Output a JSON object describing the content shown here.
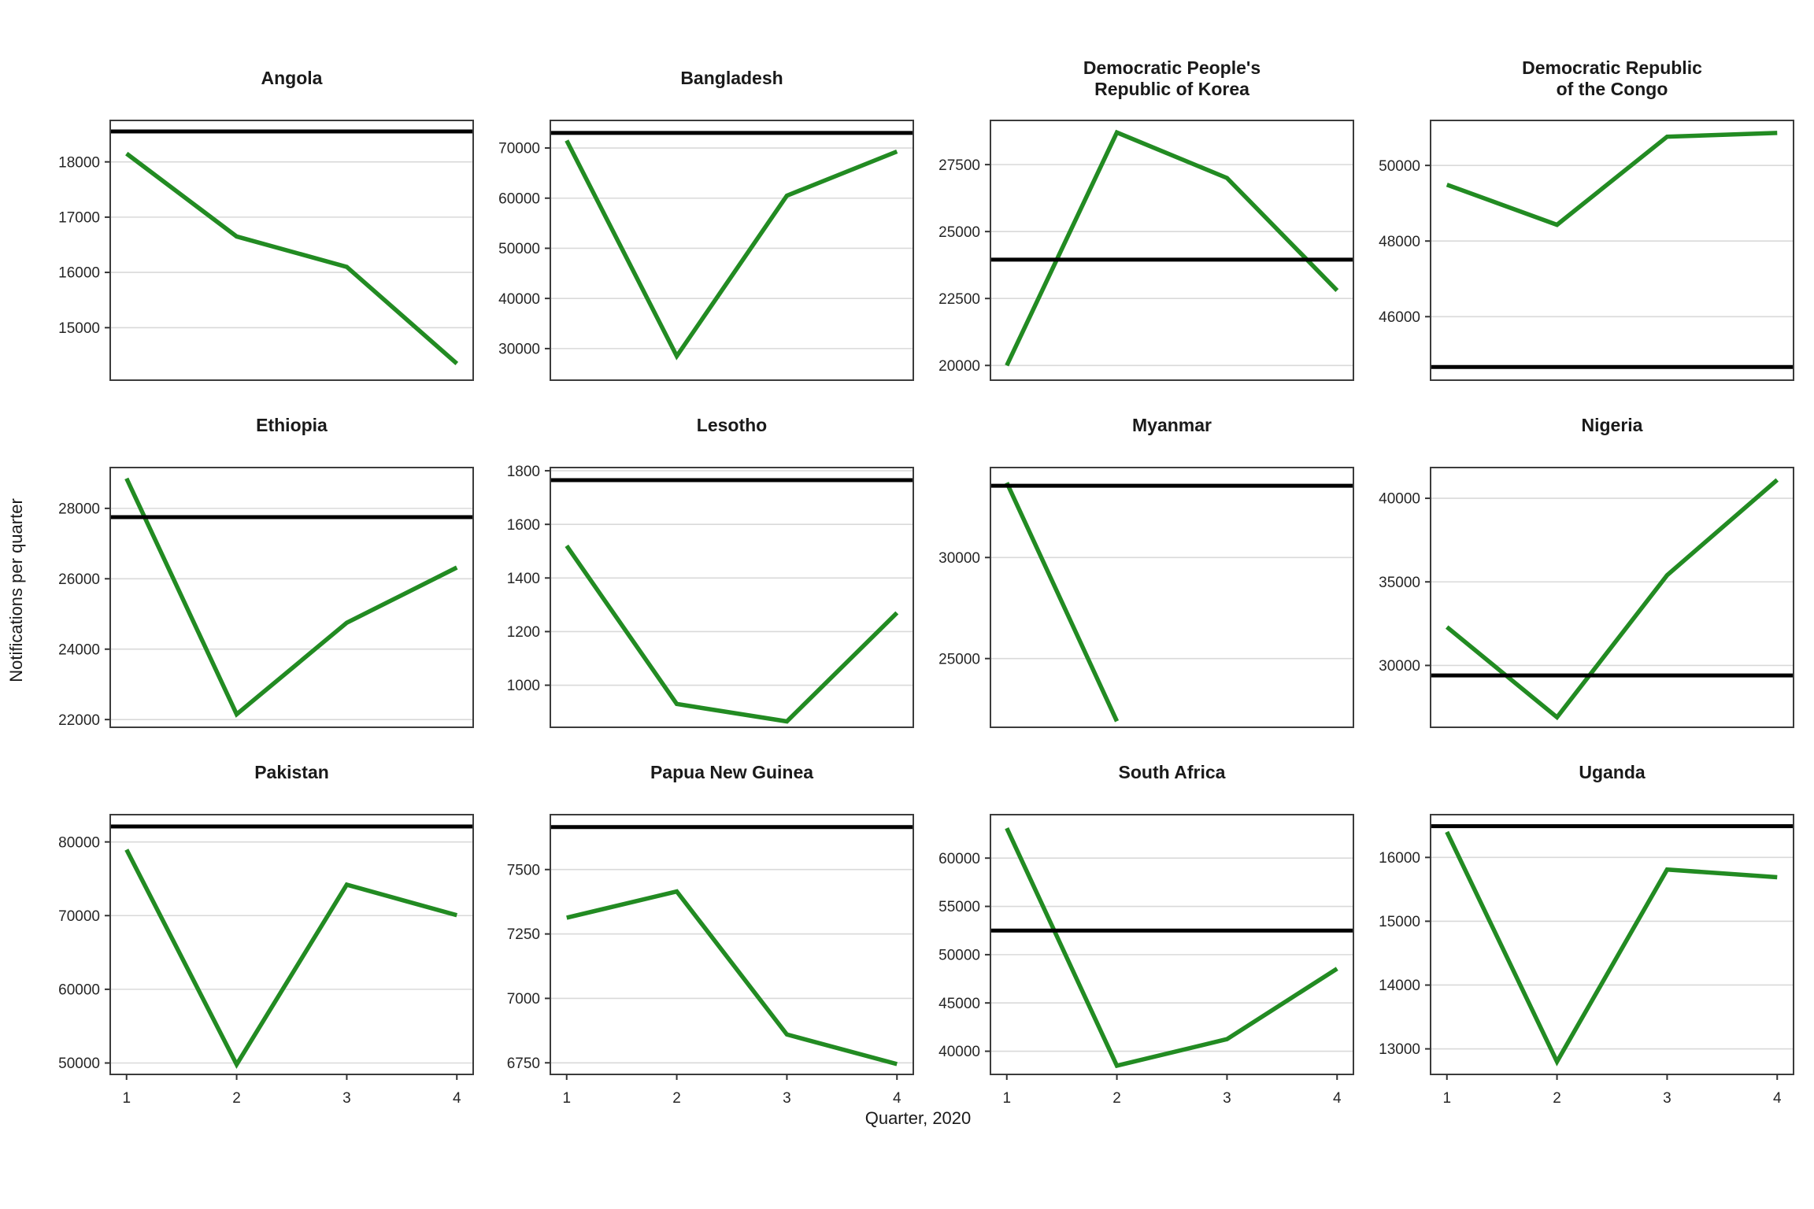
{
  "figure": {
    "ylabel": "Notifications per quarter",
    "xlabel": "Quarter, 2020",
    "line_color": "#228B22",
    "reference_line_color": "#000000",
    "grid_color": "#d9d9d9",
    "panel_border_color": "#3c3c3c",
    "tick_text_color": "#262626",
    "title_text_color": "#1a1a1a"
  },
  "chart_data": {
    "type": "line",
    "layout": "facet_grid_3x4_free_y",
    "title": "",
    "xlabel": "Quarter, 2020",
    "ylabel": "Notifications per quarter",
    "x_ticks": [
      1,
      2,
      3,
      4
    ],
    "grid": "horizontal-only",
    "legend": "none",
    "series_style": {
      "data_line": "solid green, quarterly TB notifications 2020",
      "reference_line": "solid black horizontal baseline"
    },
    "panels": [
      {
        "title": "Angola",
        "x": [
          1,
          2,
          3,
          4
        ],
        "values": [
          18150,
          16650,
          16100,
          14350
        ],
        "reference": 18550,
        "y_ticks": [
          15000,
          16000,
          17000,
          18000
        ],
        "y_range": [
          14050,
          18750
        ]
      },
      {
        "title": "Bangladesh",
        "x": [
          1,
          2,
          3,
          4
        ],
        "values": [
          71500,
          28500,
          60500,
          69300
        ],
        "reference": 73000,
        "y_ticks": [
          30000,
          40000,
          50000,
          60000,
          70000
        ],
        "y_range": [
          23700,
          75500
        ]
      },
      {
        "title": "Democratic People's\nRepublic of Korea",
        "x": [
          1,
          2,
          3,
          4
        ],
        "values": [
          20000,
          28700,
          27000,
          22800
        ],
        "reference": 23950,
        "y_ticks": [
          20000,
          22500,
          25000,
          27500
        ],
        "y_range": [
          19450,
          29150
        ]
      },
      {
        "title": "Democratic Republic\nof the Congo",
        "x": [
          1,
          2,
          3,
          4
        ],
        "values": [
          49490,
          48430,
          50760,
          50860
        ],
        "reference": 44670,
        "y_ticks": [
          46000,
          48000,
          50000
        ],
        "y_range": [
          44320,
          51190
        ]
      },
      {
        "title": "Ethiopia",
        "x": [
          1,
          2,
          3,
          4
        ],
        "values": [
          28850,
          22150,
          24750,
          26320
        ],
        "reference": 27750,
        "y_ticks": [
          22000,
          24000,
          26000,
          28000
        ],
        "y_range": [
          21780,
          29160
        ]
      },
      {
        "title": "Lesotho",
        "x": [
          1,
          2,
          3,
          4
        ],
        "values": [
          1520,
          930,
          865,
          1270
        ],
        "reference": 1765,
        "y_ticks": [
          1000,
          1200,
          1400,
          1600,
          1800
        ],
        "y_range": [
          843,
          1812
        ]
      },
      {
        "title": "Myanmar",
        "x": [
          1,
          2
        ],
        "values": [
          33700,
          21900
        ],
        "reference": 33550,
        "y_ticks": [
          25000,
          30000
        ],
        "y_range": [
          21600,
          34450
        ]
      },
      {
        "title": "Nigeria",
        "x": [
          1,
          2,
          3,
          4
        ],
        "values": [
          32300,
          26900,
          35400,
          41100
        ],
        "reference": 29400,
        "y_ticks": [
          30000,
          35000,
          40000
        ],
        "y_range": [
          26300,
          41840
        ]
      },
      {
        "title": "Pakistan",
        "x": [
          1,
          2,
          3,
          4
        ],
        "values": [
          78950,
          49800,
          74200,
          70050
        ],
        "reference": 82100,
        "y_ticks": [
          50000,
          60000,
          70000,
          80000
        ],
        "y_range": [
          48450,
          83700
        ]
      },
      {
        "title": "Papua New Guinea",
        "x": [
          1,
          2,
          3,
          4
        ],
        "values": [
          7313,
          7415,
          6860,
          6745
        ],
        "reference": 7665,
        "y_ticks": [
          6750,
          7000,
          7250,
          7500
        ],
        "y_range": [
          6705,
          7713
        ]
      },
      {
        "title": "South Africa",
        "x": [
          1,
          2,
          3,
          4
        ],
        "values": [
          63100,
          38500,
          41250,
          48550
        ],
        "reference": 52500,
        "y_ticks": [
          40000,
          45000,
          50000,
          55000,
          60000
        ],
        "y_range": [
          37600,
          64500
        ]
      },
      {
        "title": "Uganda",
        "x": [
          1,
          2,
          3,
          4
        ],
        "values": [
          16400,
          12800,
          15810,
          15690
        ],
        "reference": 16490,
        "y_ticks": [
          13000,
          14000,
          15000,
          16000
        ],
        "y_range": [
          12600,
          16670
        ]
      }
    ]
  }
}
